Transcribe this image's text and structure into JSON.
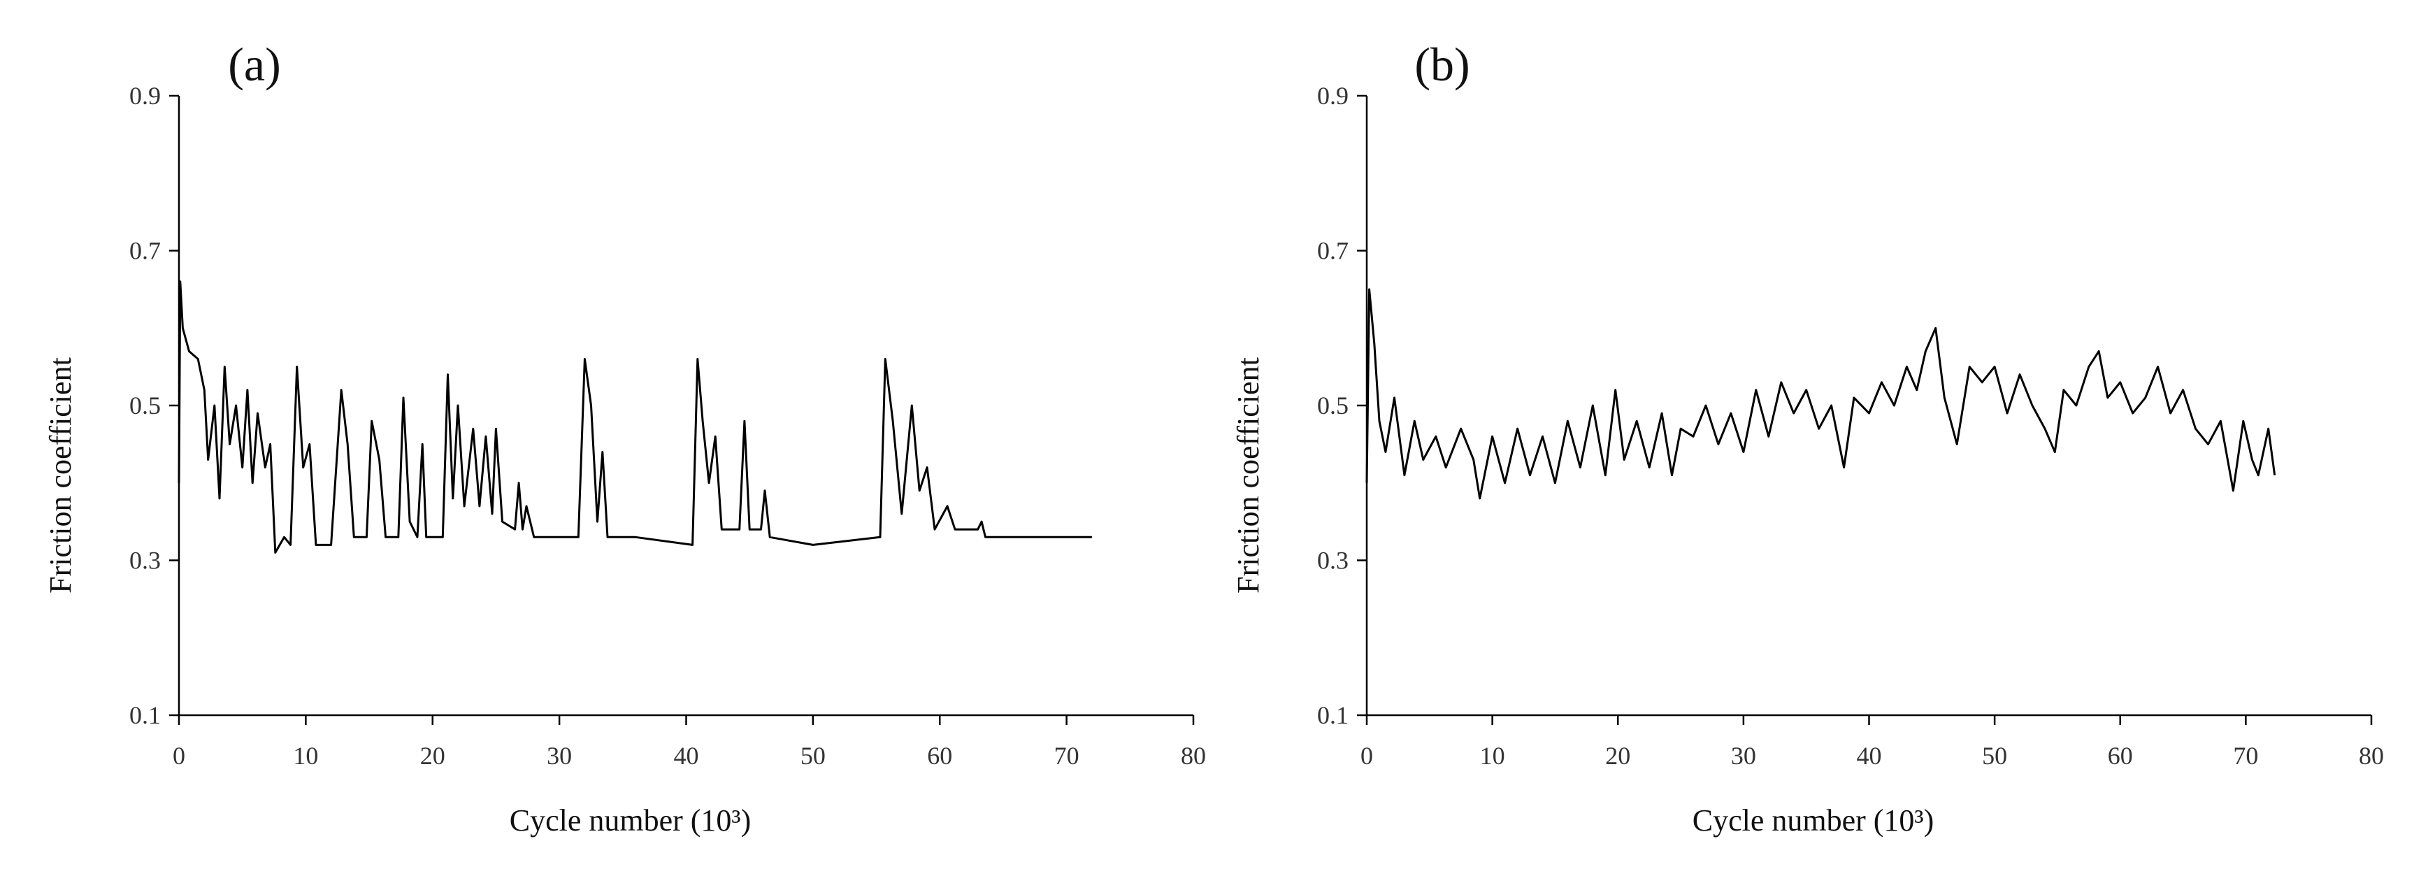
{
  "chart_data": [
    {
      "type": "line",
      "title": "(a)",
      "x_label": "Cycle number (10³)",
      "y_label": "Friction coefficient",
      "color": "#000000",
      "xlim": [
        0,
        80
      ],
      "xticks": [
        0,
        10,
        20,
        30,
        40,
        50,
        60,
        70,
        80
      ],
      "ylim": [
        0.1,
        0.9
      ],
      "yticks": [
        0.1,
        0.3,
        0.5,
        0.7,
        0.9
      ],
      "x": [
        0,
        0.1,
        0.3,
        0.8,
        1.5,
        2,
        2.3,
        2.8,
        3.2,
        3.6,
        4,
        4.5,
        5,
        5.4,
        5.8,
        6.2,
        6.8,
        7.2,
        7.6,
        8.3,
        8.8,
        9.3,
        9.8,
        10.3,
        10.8,
        12,
        12.8,
        13.3,
        13.8,
        14.8,
        15.2,
        15.8,
        16.3,
        17.3,
        17.7,
        18.2,
        18.8,
        19.2,
        19.5,
        20.8,
        21.2,
        21.6,
        22,
        22.5,
        23.2,
        23.7,
        24.2,
        24.7,
        25,
        25.5,
        26.5,
        26.8,
        27.1,
        27.4,
        28,
        31.5,
        32,
        32.5,
        33,
        33.4,
        33.8,
        36,
        40.5,
        40.9,
        41.3,
        41.8,
        42.3,
        42.8,
        44.2,
        44.6,
        45,
        45.9,
        46.2,
        46.6,
        50,
        55.3,
        55.7,
        56.3,
        57,
        57.8,
        58.4,
        59,
        59.6,
        60.6,
        61.2,
        63,
        63.3,
        63.6,
        68,
        72
      ],
      "values": [
        0.4,
        0.66,
        0.6,
        0.57,
        0.56,
        0.52,
        0.43,
        0.5,
        0.38,
        0.55,
        0.45,
        0.5,
        0.42,
        0.52,
        0.4,
        0.49,
        0.42,
        0.45,
        0.31,
        0.33,
        0.32,
        0.55,
        0.42,
        0.45,
        0.32,
        0.32,
        0.52,
        0.45,
        0.33,
        0.33,
        0.48,
        0.43,
        0.33,
        0.33,
        0.51,
        0.35,
        0.33,
        0.45,
        0.33,
        0.33,
        0.54,
        0.38,
        0.5,
        0.37,
        0.47,
        0.37,
        0.46,
        0.36,
        0.47,
        0.35,
        0.34,
        0.4,
        0.34,
        0.37,
        0.33,
        0.33,
        0.56,
        0.5,
        0.35,
        0.44,
        0.33,
        0.33,
        0.32,
        0.56,
        0.48,
        0.4,
        0.46,
        0.34,
        0.34,
        0.48,
        0.34,
        0.34,
        0.39,
        0.33,
        0.32,
        0.33,
        0.56,
        0.48,
        0.36,
        0.5,
        0.39,
        0.42,
        0.34,
        0.37,
        0.34,
        0.34,
        0.35,
        0.33,
        0.33,
        0.33
      ]
    },
    {
      "type": "line",
      "title": "(b)",
      "x_label": "Cycle number (10³)",
      "y_label": "Friction coefficient",
      "color": "#000000",
      "xlim": [
        0,
        80
      ],
      "xticks": [
        0,
        10,
        20,
        30,
        40,
        50,
        60,
        70,
        80
      ],
      "ylim": [
        0.1,
        0.9
      ],
      "yticks": [
        0.1,
        0.3,
        0.5,
        0.7,
        0.9
      ],
      "x": [
        0,
        0.2,
        0.6,
        1,
        1.5,
        2.2,
        3,
        3.8,
        4.5,
        5.5,
        6.3,
        7.5,
        8.5,
        9,
        10,
        11,
        12,
        13,
        14,
        15,
        16,
        17,
        18,
        19,
        19.8,
        20.5,
        21.5,
        22.5,
        23.5,
        24.3,
        25,
        26,
        27,
        28,
        29,
        30,
        31,
        32,
        33,
        34,
        35,
        36,
        37,
        38,
        38.8,
        40,
        41,
        42,
        43,
        43.8,
        44.5,
        45.3,
        46,
        47,
        48,
        49,
        50,
        51,
        52,
        53,
        54,
        54.8,
        55.5,
        56.5,
        57.5,
        58.3,
        59,
        60,
        61,
        62,
        63,
        64,
        65,
        66,
        67,
        68,
        69,
        69.8,
        70.5,
        71,
        71.8,
        72.3
      ],
      "values": [
        0.4,
        0.65,
        0.58,
        0.48,
        0.44,
        0.51,
        0.41,
        0.48,
        0.43,
        0.46,
        0.42,
        0.47,
        0.43,
        0.38,
        0.46,
        0.4,
        0.47,
        0.41,
        0.46,
        0.4,
        0.48,
        0.42,
        0.5,
        0.41,
        0.52,
        0.43,
        0.48,
        0.42,
        0.49,
        0.41,
        0.47,
        0.46,
        0.5,
        0.45,
        0.49,
        0.44,
        0.52,
        0.46,
        0.53,
        0.49,
        0.52,
        0.47,
        0.5,
        0.42,
        0.51,
        0.49,
        0.53,
        0.5,
        0.55,
        0.52,
        0.57,
        0.6,
        0.51,
        0.45,
        0.55,
        0.53,
        0.55,
        0.49,
        0.54,
        0.5,
        0.47,
        0.44,
        0.52,
        0.5,
        0.55,
        0.57,
        0.51,
        0.53,
        0.49,
        0.51,
        0.55,
        0.49,
        0.52,
        0.47,
        0.45,
        0.48,
        0.39,
        0.48,
        0.43,
        0.41,
        0.47,
        0.41
      ]
    }
  ]
}
